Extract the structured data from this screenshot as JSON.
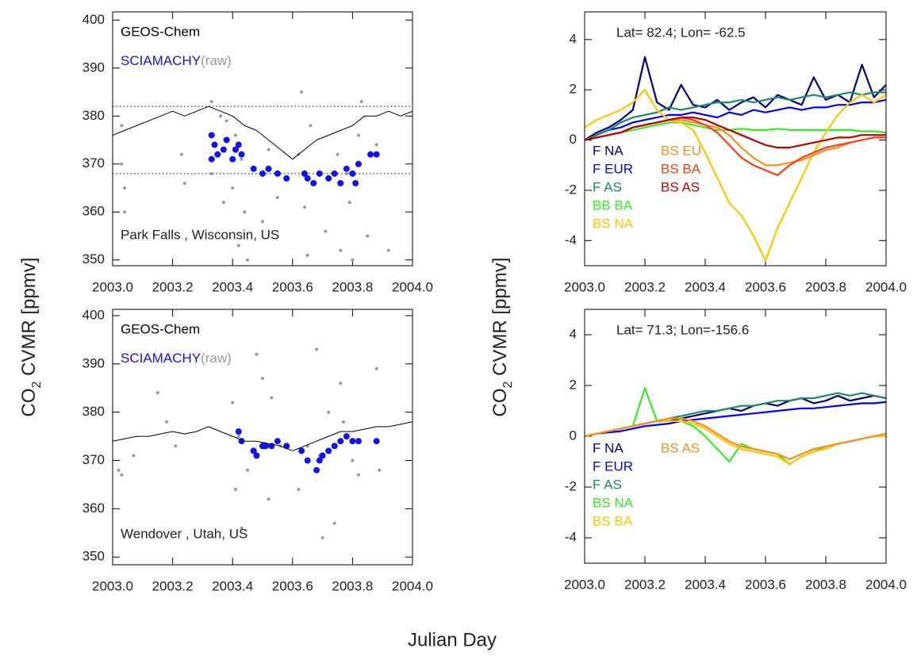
{
  "figure": {
    "xlabel": "Julian Day"
  },
  "chart_data": [
    {
      "type": "scatter",
      "ylabel": [
        "CO",
        "2",
        " CVMR [ppmv]"
      ],
      "annotation": "Park Falls , Wisconsin, US",
      "xlim": [
        2003,
        2004
      ],
      "ylim": [
        348.8,
        401.7
      ],
      "xticks": [
        {
          "value": 2003,
          "label": "2003.0"
        },
        2003.2,
        2003.4,
        2003.6,
        2003.8,
        {
          "value": 2004,
          "label": "2004.0"
        }
      ],
      "yticks": [
        350,
        360,
        370,
        380,
        390,
        400
      ],
      "hlines": [
        382,
        368
      ],
      "series": [
        {
          "name": "GEOS-Chem",
          "color": "#000000",
          "mode": "line",
          "x": [
            2003.0,
            2003.04,
            2003.08,
            2003.12,
            2003.16,
            2003.2,
            2003.24,
            2003.28,
            2003.32,
            2003.36,
            2003.4,
            2003.44,
            2003.48,
            2003.52,
            2003.56,
            2003.6,
            2003.64,
            2003.68,
            2003.72,
            2003.76,
            2003.8,
            2003.84,
            2003.88,
            2003.92,
            2003.96,
            2004.0
          ],
          "values": [
            376,
            377,
            378,
            379,
            380,
            381,
            380,
            381,
            382,
            381,
            380,
            378,
            377,
            375,
            373,
            371,
            373,
            375,
            376,
            377,
            378,
            380,
            380,
            381,
            380,
            381
          ]
        },
        {
          "name": "SCIAMACHY",
          "color": "#1010f0",
          "mode": "markers",
          "x": [
            2003.33,
            2003.33,
            2003.34,
            2003.35,
            2003.37,
            2003.38,
            2003.4,
            2003.41,
            2003.42,
            2003.43,
            2003.47,
            2003.5,
            2003.52,
            2003.55,
            2003.58,
            2003.64,
            2003.65,
            2003.67,
            2003.69,
            2003.72,
            2003.74,
            2003.76,
            2003.78,
            2003.8,
            2003.81,
            2003.82,
            2003.86,
            2003.88
          ],
          "values": [
            376,
            371,
            374,
            372,
            373,
            375,
            371,
            373,
            374,
            372,
            369,
            368,
            369,
            368,
            367,
            368,
            367,
            366,
            368,
            367,
            368,
            366,
            369,
            368,
            366,
            370,
            372,
            372
          ]
        },
        {
          "name": "(raw)",
          "color": "#999999",
          "mode": "markers",
          "x": [
            2003.03,
            2003.03,
            2003.04,
            2003.04,
            2003.23,
            2003.24,
            2003.33,
            2003.33,
            2003.36,
            2003.37,
            2003.38,
            2003.4,
            2003.41,
            2003.42,
            2003.43,
            2003.44,
            2003.45,
            2003.5,
            2003.52,
            2003.55,
            2003.62,
            2003.63,
            2003.64,
            2003.65,
            2003.66,
            2003.71,
            2003.75,
            2003.76,
            2003.78,
            2003.79,
            2003.8,
            2003.82,
            2003.83,
            2003.85,
            2003.88,
            2003.92
          ],
          "values": [
            378,
            370,
            365,
            360,
            372,
            366,
            383,
            368,
            380,
            362,
            379,
            365,
            376,
            353,
            371,
            360,
            350,
            358,
            373,
            363,
            372,
            385,
            361,
            351,
            378,
            356,
            372,
            352,
            368,
            362,
            350,
            376,
            383,
            355,
            374,
            352
          ]
        }
      ]
    },
    {
      "type": "line",
      "ylabel": [
        "CO",
        "2",
        " CVMR [ppmv]"
      ],
      "annotation": "Lat= 82.4; Lon= -62.5",
      "xlim": [
        2003,
        2004
      ],
      "ylim": [
        -5,
        5.1
      ],
      "xticks": [
        {
          "value": 2003,
          "label": "2003.0"
        },
        2003.2,
        2003.4,
        2003.6,
        2003.8,
        {
          "value": 2004,
          "label": "2004.0"
        }
      ],
      "yticks": [
        -4,
        -2,
        0,
        2,
        4
      ],
      "x": [
        2003.0,
        2003.04,
        2003.08,
        2003.12,
        2003.16,
        2003.2,
        2003.24,
        2003.28,
        2003.32,
        2003.36,
        2003.4,
        2003.44,
        2003.48,
        2003.52,
        2003.56,
        2003.6,
        2003.64,
        2003.68,
        2003.72,
        2003.76,
        2003.8,
        2003.84,
        2003.88,
        2003.92,
        2003.96,
        2004.0
      ],
      "series": [
        {
          "name": "F NA",
          "color": "#00007f",
          "legend_col": 0,
          "values": [
            0,
            0.3,
            0.5,
            0.8,
            1.2,
            3.3,
            1.5,
            1.2,
            2.2,
            1.4,
            1.3,
            1.6,
            1.2,
            1.5,
            1.7,
            1.3,
            1.8,
            1.6,
            1.4,
            2.5,
            1.6,
            1.8,
            1.5,
            3.0,
            1.7,
            2.2
          ]
        },
        {
          "name": "F EUR",
          "color": "#0000ff",
          "legend_col": 0,
          "values": [
            0,
            0.2,
            0.4,
            0.5,
            0.7,
            0.8,
            0.9,
            1.0,
            1.0,
            1.1,
            1.0,
            0.9,
            1.1,
            1.0,
            1.2,
            1.1,
            1.2,
            1.3,
            1.2,
            1.3,
            1.3,
            1.4,
            1.4,
            1.5,
            1.5,
            1.6
          ]
        },
        {
          "name": "F AS",
          "color": "#1a8a6a",
          "legend_col": 0,
          "values": [
            0,
            0.2,
            0.4,
            0.7,
            0.9,
            1.0,
            1.1,
            1.3,
            1.2,
            1.3,
            1.4,
            1.5,
            1.5,
            1.6,
            1.5,
            1.6,
            1.7,
            1.6,
            1.7,
            1.8,
            1.7,
            1.8,
            1.9,
            1.8,
            1.9,
            1.9
          ]
        },
        {
          "name": "BB BA",
          "color": "#33ee22",
          "legend_col": 0,
          "values": [
            0,
            0.1,
            0.2,
            0.3,
            0.4,
            0.5,
            0.6,
            0.7,
            0.7,
            0.6,
            0.5,
            0.4,
            0.4,
            0.45,
            0.4,
            0.4,
            0.45,
            0.4,
            0.4,
            0.4,
            0.4,
            0.4,
            0.4,
            0.35,
            0.35,
            0.3
          ]
        },
        {
          "name": "BS NA",
          "color": "#ffc600",
          "legend_col": 0,
          "values": [
            0.5,
            0.8,
            1.0,
            1.2,
            1.5,
            2.0,
            1.2,
            0.8,
            0.7,
            0.4,
            -0.5,
            -1.5,
            -2.5,
            -3.0,
            -3.8,
            -4.8,
            -3.5,
            -2.5,
            -1.5,
            -0.5,
            0.3,
            1.0,
            1.5,
            1.8,
            1.5,
            1.8
          ]
        },
        {
          "name": "BS EU",
          "color": "#ff8c1a",
          "legend_col": 1,
          "values": [
            0,
            0.1,
            0.2,
            0.3,
            0.5,
            0.6,
            0.7,
            0.8,
            0.8,
            0.7,
            0.6,
            0.5,
            0.2,
            -0.3,
            -0.7,
            -1.0,
            -1.0,
            -0.9,
            -0.8,
            -0.6,
            -0.4,
            -0.3,
            -0.1,
            0,
            0.1,
            0.1
          ]
        },
        {
          "name": "BS BA",
          "color": "#ff3c14",
          "legend_col": 1,
          "values": [
            0,
            0.1,
            0.2,
            0.3,
            0.5,
            0.6,
            0.7,
            0.8,
            0.9,
            0.8,
            0.6,
            0.3,
            -0.2,
            -0.7,
            -1.0,
            -1.2,
            -1.4,
            -1.0,
            -0.7,
            -0.5,
            -0.3,
            -0.2,
            -0.1,
            0,
            0.1,
            0.1
          ]
        },
        {
          "name": "BS AS",
          "color": "#c00000",
          "legend_col": 1,
          "values": [
            0,
            0.1,
            0.2,
            0.3,
            0.5,
            0.6,
            0.7,
            0.8,
            0.9,
            0.9,
            0.8,
            0.6,
            0.4,
            0.2,
            0.0,
            -0.2,
            -0.3,
            -0.3,
            -0.2,
            -0.1,
            0,
            0.1,
            0.1,
            0.2,
            0.2,
            0.2
          ]
        }
      ]
    },
    {
      "type": "scatter",
      "annotation": "Wendover , Utah, US",
      "xlim": [
        2003,
        2004
      ],
      "ylim": [
        348.4,
        401.3
      ],
      "xticks": [
        {
          "value": 2003,
          "label": "2003.0"
        },
        2003.2,
        2003.4,
        2003.6,
        2003.8,
        {
          "value": 2004,
          "label": "2004.0"
        }
      ],
      "yticks": [
        350,
        360,
        370,
        380,
        390,
        400
      ],
      "series": [
        {
          "name": "GEOS-Chem",
          "color": "#000000",
          "mode": "line",
          "x": [
            2003.0,
            2003.04,
            2003.08,
            2003.12,
            2003.16,
            2003.2,
            2003.24,
            2003.28,
            2003.32,
            2003.36,
            2003.4,
            2003.44,
            2003.48,
            2003.52,
            2003.56,
            2003.6,
            2003.64,
            2003.68,
            2003.72,
            2003.76,
            2003.8,
            2003.84,
            2003.88,
            2003.92,
            2003.96,
            2004.0
          ],
          "values": [
            374,
            374.5,
            375,
            375,
            375.5,
            376,
            375.5,
            376,
            377,
            376,
            375,
            374,
            374,
            373.5,
            373,
            372,
            373,
            374,
            375,
            376,
            376,
            376.5,
            377,
            377,
            377.5,
            378
          ]
        },
        {
          "name": "SCIAMACHY",
          "color": "#1010f0",
          "mode": "markers",
          "x": [
            2003.42,
            2003.43,
            2003.47,
            2003.48,
            2003.5,
            2003.51,
            2003.53,
            2003.55,
            2003.58,
            2003.63,
            2003.65,
            2003.68,
            2003.69,
            2003.7,
            2003.72,
            2003.74,
            2003.76,
            2003.78,
            2003.8,
            2003.82,
            2003.88
          ],
          "values": [
            376,
            374,
            372,
            371,
            373,
            373,
            373,
            374,
            373,
            372,
            370,
            368,
            370,
            371,
            372,
            373,
            374,
            375,
            374,
            374,
            374
          ]
        },
        {
          "name": "(raw)",
          "color": "#999999",
          "mode": "markers",
          "x": [
            2003.02,
            2003.03,
            2003.07,
            2003.15,
            2003.18,
            2003.21,
            2003.4,
            2003.41,
            2003.42,
            2003.43,
            2003.45,
            2003.48,
            2003.5,
            2003.52,
            2003.53,
            2003.56,
            2003.62,
            2003.65,
            2003.68,
            2003.69,
            2003.7,
            2003.72,
            2003.74,
            2003.76,
            2003.77,
            2003.8,
            2003.82,
            2003.88,
            2003.89
          ],
          "values": [
            368,
            367,
            371,
            384,
            378,
            373,
            382,
            364,
            375,
            356,
            368,
            392,
            387,
            362,
            383,
            373,
            364,
            373,
            393,
            371,
            354,
            380,
            357,
            386,
            378,
            370,
            367,
            389,
            368
          ]
        }
      ]
    },
    {
      "type": "line",
      "annotation": "Lat= 71.3; Lon=-156.6",
      "xlim": [
        2003,
        2004
      ],
      "ylim": [
        -5,
        5
      ],
      "xticks": [
        {
          "value": 2003,
          "label": "2003.0"
        },
        2003.2,
        2003.4,
        2003.6,
        2003.8,
        {
          "value": 2004,
          "label": "2004.0"
        }
      ],
      "yticks": [
        -4,
        -2,
        0,
        2,
        4
      ],
      "x": [
        2003.0,
        2003.04,
        2003.08,
        2003.12,
        2003.16,
        2003.2,
        2003.24,
        2003.28,
        2003.32,
        2003.36,
        2003.4,
        2003.44,
        2003.48,
        2003.52,
        2003.56,
        2003.6,
        2003.64,
        2003.68,
        2003.72,
        2003.76,
        2003.8,
        2003.84,
        2003.88,
        2003.92,
        2003.96,
        2004.0
      ],
      "series": [
        {
          "name": "F NA",
          "color": "#00007f",
          "legend_col": 0,
          "values": [
            0,
            0.1,
            0.2,
            0.3,
            0.4,
            0.5,
            0.6,
            0.6,
            0.7,
            0.8,
            0.9,
            1.0,
            1.1,
            1.0,
            1.2,
            1.3,
            1.2,
            1.4,
            1.5,
            1.3,
            1.4,
            1.6,
            1.4,
            1.5,
            1.6,
            1.5
          ]
        },
        {
          "name": "F EUR",
          "color": "#0000ff",
          "legend_col": 0,
          "values": [
            0,
            0.1,
            0.15,
            0.2,
            0.3,
            0.4,
            0.45,
            0.5,
            0.6,
            0.65,
            0.7,
            0.75,
            0.8,
            0.85,
            0.9,
            0.95,
            1.0,
            1.05,
            1.1,
            1.1,
            1.15,
            1.2,
            1.25,
            1.3,
            1.3,
            1.35
          ]
        },
        {
          "name": "F AS",
          "color": "#1a8a6a",
          "legend_col": 0,
          "values": [
            0,
            0.1,
            0.2,
            0.3,
            0.4,
            0.5,
            0.6,
            0.7,
            0.8,
            0.9,
            1.0,
            1.0,
            1.1,
            1.2,
            1.2,
            1.3,
            1.4,
            1.4,
            1.5,
            1.5,
            1.6,
            1.7,
            1.6,
            1.7,
            1.6,
            1.5
          ]
        },
        {
          "name": "BS NA",
          "color": "#33ee22",
          "legend_col": 0,
          "values": [
            0,
            0.1,
            0.2,
            0.3,
            0.4,
            1.9,
            0.6,
            0.6,
            0.6,
            0.4,
            0,
            -0.5,
            -1.0,
            -0.3,
            -0.5,
            -0.6,
            -0.7,
            -1.1,
            -0.8,
            -0.6,
            -0.4,
            -0.3,
            -0.2,
            -0.1,
            0,
            0.1
          ]
        },
        {
          "name": "BS BA",
          "color": "#ffc600",
          "legend_col": 0,
          "values": [
            0,
            0.1,
            0.2,
            0.3,
            0.4,
            0.5,
            0.6,
            0.6,
            0.6,
            0.5,
            0.3,
            0,
            -0.3,
            -0.5,
            -0.6,
            -0.7,
            -0.8,
            -1.1,
            -0.8,
            -0.6,
            -0.5,
            -0.3,
            -0.2,
            -0.1,
            0,
            0
          ]
        },
        {
          "name": "BS AS",
          "color": "#ff8c1a",
          "legend_col": 1,
          "values": [
            0,
            0.1,
            0.2,
            0.3,
            0.4,
            0.5,
            0.6,
            0.7,
            0.7,
            0.6,
            0.4,
            0.1,
            -0.2,
            -0.4,
            -0.5,
            -0.6,
            -0.7,
            -0.9,
            -0.7,
            -0.5,
            -0.4,
            -0.3,
            -0.2,
            -0.1,
            0,
            0.1
          ]
        }
      ]
    }
  ]
}
